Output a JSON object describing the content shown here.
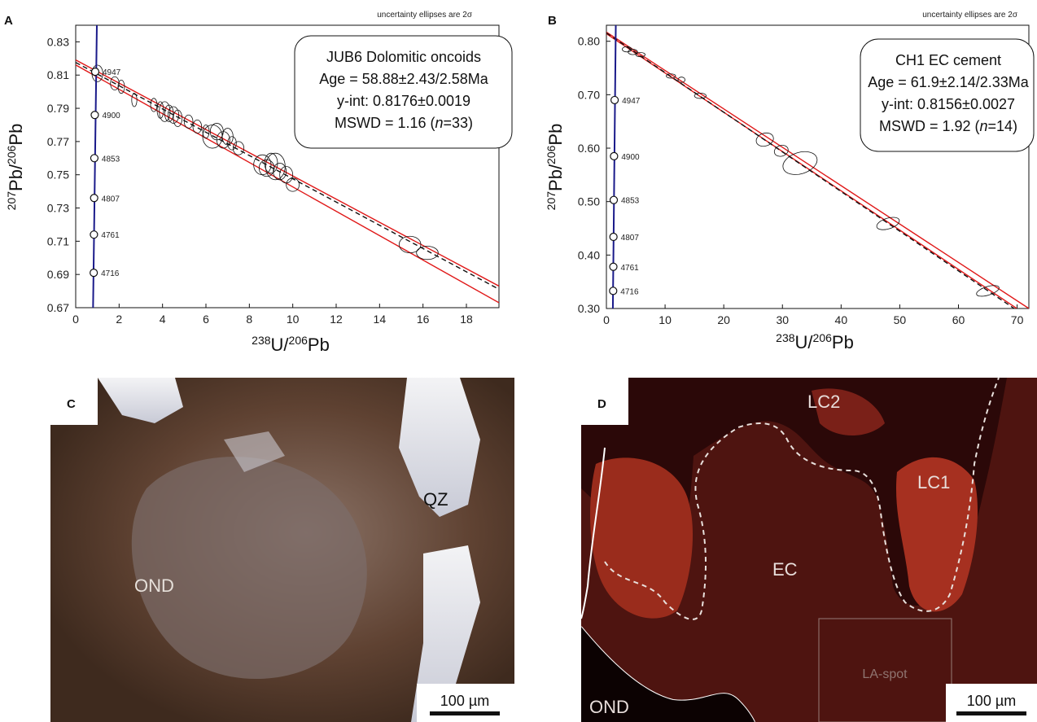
{
  "chart_data": [
    {
      "panel": "A",
      "type": "scatter",
      "note": "uncertainty ellipses are 2σ",
      "xlabel": {
        "base1": "238",
        "mid": "U/",
        "base2": "206",
        "end": "Pb"
      },
      "ylabel": {
        "base1": "207",
        "mid": "Pb/",
        "base2": "206",
        "end": "Pb"
      },
      "xlim": [
        0,
        19.5
      ],
      "ylim": [
        0.67,
        0.84
      ],
      "xticks": [
        "0",
        "2",
        "4",
        "6",
        "8",
        "10",
        "12",
        "14",
        "16",
        "18"
      ],
      "xtick_values": [
        0,
        2,
        4,
        6,
        8,
        10,
        12,
        14,
        16,
        18
      ],
      "yticks": [
        "0.67",
        "0.69",
        "0.71",
        "0.73",
        "0.75",
        "0.77",
        "0.79",
        "0.81",
        "0.83"
      ],
      "ytick_values": [
        0.67,
        0.69,
        0.71,
        0.73,
        0.75,
        0.77,
        0.79,
        0.81,
        0.83
      ],
      "info_box": {
        "title": "JUB6 Dolomitic oncoids",
        "age": "Age = 58.88±2.43/2.58Ma",
        "yint": "y-int: 0.8176±0.0019",
        "mswd_prefix": "MSWD = 1.16 (",
        "n_italic": "n",
        "mswd_suffix": "=33)"
      },
      "concordia_ages": [
        "4947",
        "4900",
        "4853",
        "4807",
        "4761",
        "4716"
      ],
      "concordia_points": [
        {
          "x": 0.9,
          "y": 0.812
        },
        {
          "x": 0.88,
          "y": 0.786
        },
        {
          "x": 0.86,
          "y": 0.76
        },
        {
          "x": 0.85,
          "y": 0.736
        },
        {
          "x": 0.84,
          "y": 0.714
        },
        {
          "x": 0.83,
          "y": 0.691
        }
      ],
      "concordia_line": [
        {
          "x": 0.98,
          "y": 0.845
        },
        {
          "x": 0.8,
          "y": 0.67
        }
      ],
      "regression": {
        "intercept": 0.8176,
        "slope": -0.007
      },
      "envelope": {
        "upper_end": 0.683,
        "lower_end": 0.673
      },
      "ellipses": [
        {
          "x": 1.0,
          "y": 0.811,
          "sx": 0.25,
          "sy": 0.005,
          "rot": 0
        },
        {
          "x": 1.8,
          "y": 0.805,
          "sx": 0.2,
          "sy": 0.004,
          "rot": 0
        },
        {
          "x": 2.1,
          "y": 0.803,
          "sx": 0.15,
          "sy": 0.004,
          "rot": 0
        },
        {
          "x": 2.7,
          "y": 0.795,
          "sx": 0.12,
          "sy": 0.004,
          "rot": 0
        },
        {
          "x": 3.6,
          "y": 0.792,
          "sx": 0.15,
          "sy": 0.004,
          "rot": 0
        },
        {
          "x": 3.9,
          "y": 0.789,
          "sx": 0.15,
          "sy": 0.005,
          "rot": 0
        },
        {
          "x": 4.1,
          "y": 0.788,
          "sx": 0.25,
          "sy": 0.006,
          "rot": 0
        },
        {
          "x": 4.3,
          "y": 0.787,
          "sx": 0.2,
          "sy": 0.005,
          "rot": 0
        },
        {
          "x": 4.5,
          "y": 0.786,
          "sx": 0.25,
          "sy": 0.005,
          "rot": 0
        },
        {
          "x": 4.7,
          "y": 0.784,
          "sx": 0.2,
          "sy": 0.005,
          "rot": 0
        },
        {
          "x": 5.2,
          "y": 0.782,
          "sx": 0.2,
          "sy": 0.004,
          "rot": 0
        },
        {
          "x": 5.6,
          "y": 0.779,
          "sx": 0.2,
          "sy": 0.004,
          "rot": 0
        },
        {
          "x": 6.0,
          "y": 0.776,
          "sx": 0.15,
          "sy": 0.004,
          "rot": 0
        },
        {
          "x": 6.3,
          "y": 0.773,
          "sx": 0.45,
          "sy": 0.007,
          "rot": 0
        },
        {
          "x": 6.5,
          "y": 0.776,
          "sx": 0.3,
          "sy": 0.005,
          "rot": 0
        },
        {
          "x": 6.8,
          "y": 0.771,
          "sx": 0.3,
          "sy": 0.005,
          "rot": 0
        },
        {
          "x": 7.0,
          "y": 0.773,
          "sx": 0.25,
          "sy": 0.005,
          "rot": 0
        },
        {
          "x": 7.2,
          "y": 0.769,
          "sx": 0.2,
          "sy": 0.004,
          "rot": 0
        },
        {
          "x": 7.5,
          "y": 0.766,
          "sx": 0.25,
          "sy": 0.004,
          "rot": 0
        },
        {
          "x": 8.6,
          "y": 0.756,
          "sx": 0.4,
          "sy": 0.006,
          "rot": 0
        },
        {
          "x": 8.8,
          "y": 0.754,
          "sx": 0.35,
          "sy": 0.005,
          "rot": 0
        },
        {
          "x": 9.0,
          "y": 0.757,
          "sx": 0.3,
          "sy": 0.006,
          "rot": 0
        },
        {
          "x": 9.2,
          "y": 0.755,
          "sx": 0.45,
          "sy": 0.008,
          "rot": 0
        },
        {
          "x": 9.4,
          "y": 0.752,
          "sx": 0.3,
          "sy": 0.005,
          "rot": 0
        },
        {
          "x": 9.7,
          "y": 0.75,
          "sx": 0.3,
          "sy": 0.005,
          "rot": 0
        },
        {
          "x": 10.0,
          "y": 0.744,
          "sx": 0.3,
          "sy": 0.004,
          "rot": 0
        },
        {
          "x": 15.4,
          "y": 0.708,
          "sx": 0.5,
          "sy": 0.005,
          "rot": 0
        },
        {
          "x": 16.2,
          "y": 0.703,
          "sx": 0.5,
          "sy": 0.004,
          "rot": 0
        }
      ]
    },
    {
      "panel": "B",
      "type": "scatter",
      "note": "uncertainty ellipses are 2σ",
      "xlabel": {
        "base1": "238",
        "mid": "U/",
        "base2": "206",
        "end": "Pb"
      },
      "ylabel": {
        "base1": "207",
        "mid": "Pb/",
        "base2": "206",
        "end": "Pb"
      },
      "xlim": [
        0,
        72
      ],
      "ylim": [
        0.3,
        0.83
      ],
      "xticks": [
        "0",
        "10",
        "20",
        "30",
        "40",
        "50",
        "60",
        "70"
      ],
      "xtick_values": [
        0,
        10,
        20,
        30,
        40,
        50,
        60,
        70
      ],
      "yticks": [
        "0.30",
        "0.40",
        "0.50",
        "0.60",
        "0.70",
        "0.80"
      ],
      "ytick_values": [
        0.3,
        0.4,
        0.5,
        0.6,
        0.7,
        0.8
      ],
      "info_box": {
        "title": "CH1 EC cement",
        "age": "Age = 61.9±2.14/2.33Ma",
        "yint": "y-int: 0.8156±0.0027",
        "mswd_prefix": "MSWD = 1.92 (",
        "n_italic": "n",
        "mswd_suffix": "=14)"
      },
      "concordia_ages": [
        "4947",
        "4900",
        "4853",
        "4807",
        "4761",
        "4716"
      ],
      "concordia_points": [
        {
          "x": 1.4,
          "y": 0.69
        },
        {
          "x": 1.3,
          "y": 0.585
        },
        {
          "x": 1.25,
          "y": 0.503
        },
        {
          "x": 1.2,
          "y": 0.434
        },
        {
          "x": 1.18,
          "y": 0.378
        },
        {
          "x": 1.15,
          "y": 0.333
        }
      ],
      "concordia_line": [
        {
          "x": 1.6,
          "y": 0.83
        },
        {
          "x": 1.1,
          "y": 0.3
        }
      ],
      "regression": {
        "intercept": 0.8156,
        "slope": -0.00742
      },
      "envelope": {
        "upper_end": 0.3,
        "lower_end": 0.285
      },
      "ellipses": [
        {
          "x": 3.5,
          "y": 0.785,
          "sx": 0.8,
          "sy": 0.005,
          "rot": 0
        },
        {
          "x": 4.5,
          "y": 0.78,
          "sx": 0.8,
          "sy": 0.005,
          "rot": 0
        },
        {
          "x": 5.8,
          "y": 0.775,
          "sx": 0.8,
          "sy": 0.004,
          "rot": 0
        },
        {
          "x": 11.0,
          "y": 0.735,
          "sx": 0.8,
          "sy": 0.004,
          "rot": 0
        },
        {
          "x": 12.8,
          "y": 0.728,
          "sx": 0.6,
          "sy": 0.005,
          "rot": 0
        },
        {
          "x": 16.0,
          "y": 0.698,
          "sx": 1.0,
          "sy": 0.005,
          "rot": 0
        },
        {
          "x": 27.0,
          "y": 0.616,
          "sx": 1.5,
          "sy": 0.012,
          "rot": -0.3
        },
        {
          "x": 29.8,
          "y": 0.595,
          "sx": 1.2,
          "sy": 0.01,
          "rot": -0.3
        },
        {
          "x": 33.0,
          "y": 0.572,
          "sx": 3.0,
          "sy": 0.02,
          "rot": -0.3
        },
        {
          "x": 48.0,
          "y": 0.459,
          "sx": 2.0,
          "sy": 0.01,
          "rot": -0.3
        },
        {
          "x": 65.0,
          "y": 0.333,
          "sx": 2.0,
          "sy": 0.008,
          "rot": -0.3
        }
      ]
    }
  ],
  "photos": {
    "c": {
      "label": "C",
      "qz": "QZ",
      "ond": "OND",
      "scale": "100 µm"
    },
    "d": {
      "label": "D",
      "lc2": "LC2",
      "lc1": "LC1",
      "ec": "EC",
      "laspot": "LA-spot",
      "ond": "OND",
      "scale": "100 µm"
    }
  }
}
